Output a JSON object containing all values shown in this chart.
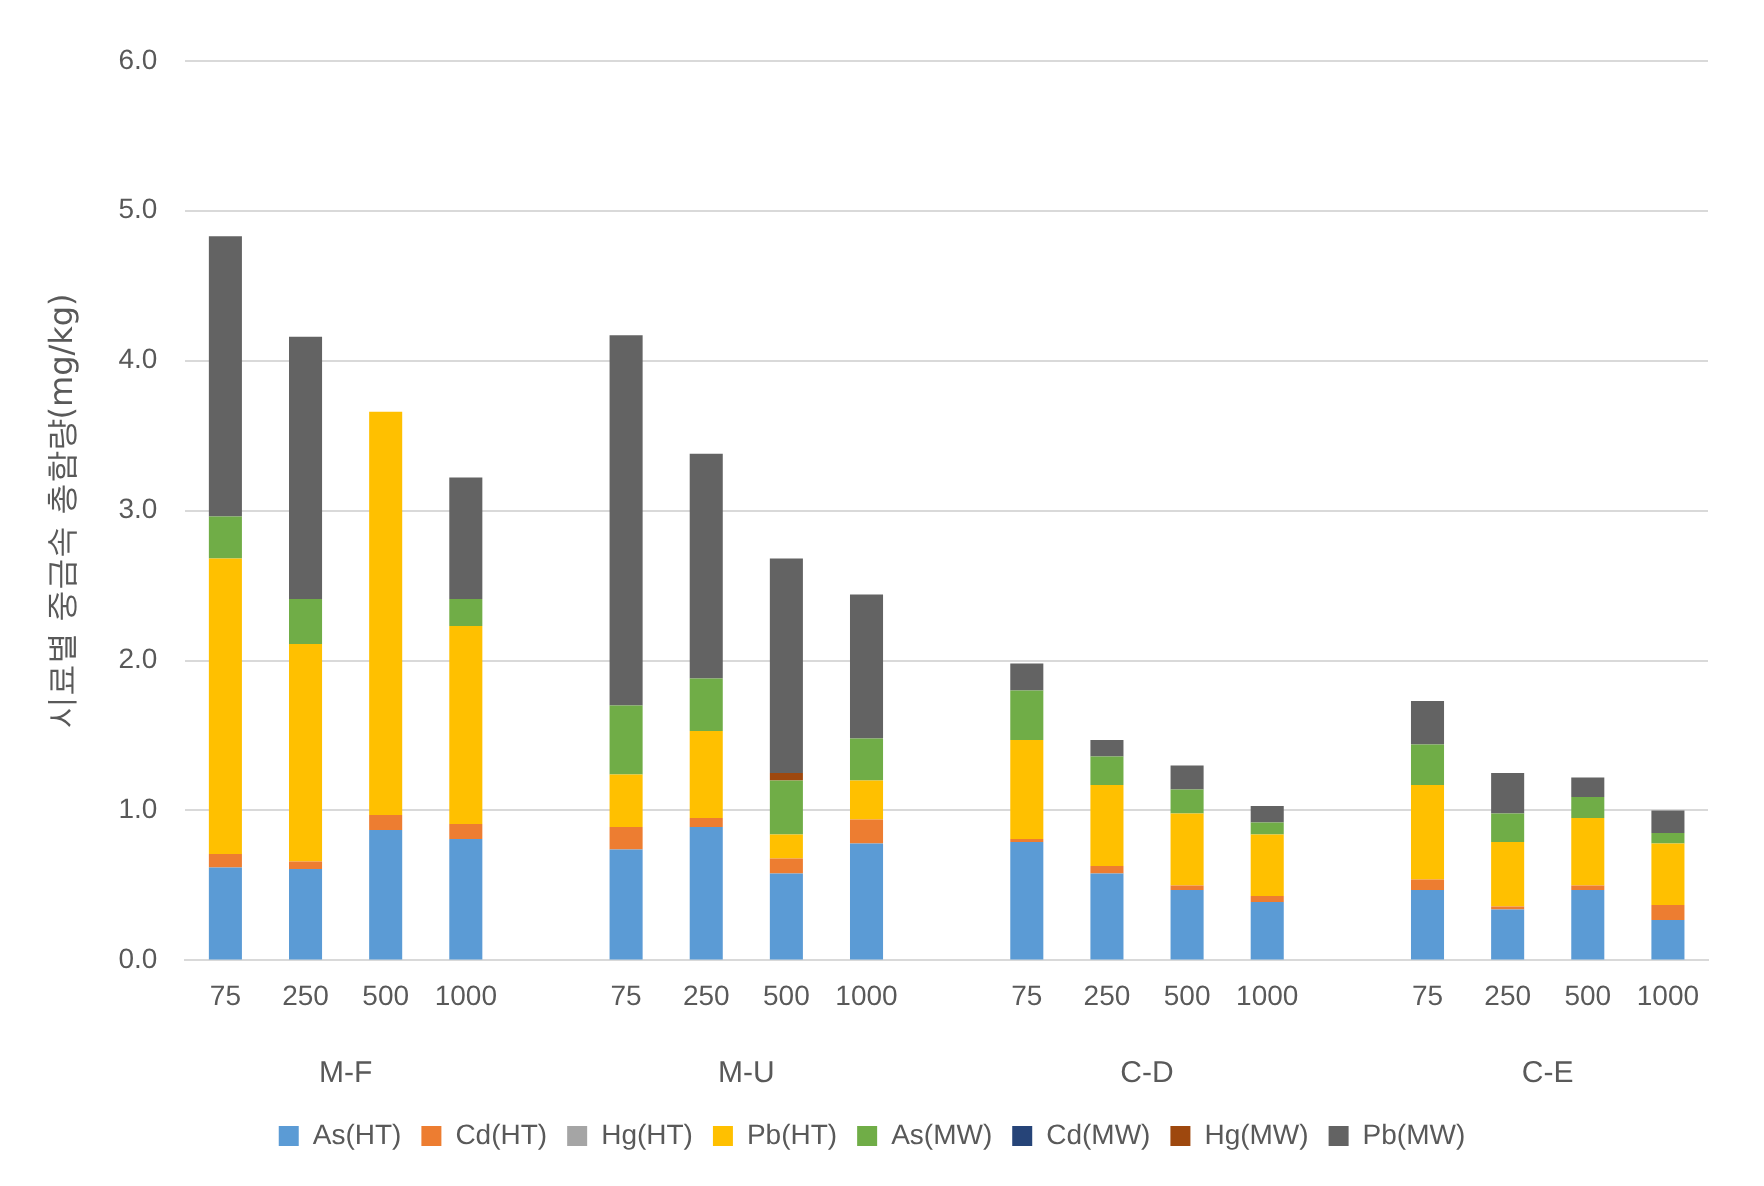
{
  "chart_data": {
    "type": "bar",
    "stacked": true,
    "ylabel": "시료별 중금속 총함량(mg/kg)",
    "categories": [
      "75",
      "250",
      "500",
      "1000",
      null,
      "75",
      "250",
      "500",
      "1000",
      null,
      "75",
      "250",
      "500",
      "1000",
      null,
      "75",
      "250",
      "500",
      "1000"
    ],
    "annotations": [
      "M-F",
      "M-U",
      "C-D",
      "C-E"
    ],
    "series": [
      {
        "name": "As(HT)",
        "color": "#5b9bd5",
        "values": [
          0.62,
          0.61,
          0.87,
          0.81,
          null,
          0.74,
          0.89,
          0.58,
          0.78,
          null,
          0.79,
          0.58,
          0.47,
          0.39,
          null,
          0.47,
          0.34,
          0.47,
          0.27
        ]
      },
      {
        "name": "Cd(HT)",
        "color": "#ed7d31",
        "values": [
          0.09,
          0.05,
          0.1,
          0.1,
          null,
          0.15,
          0.06,
          0.1,
          0.16,
          null,
          0.02,
          0.05,
          0.03,
          0.04,
          null,
          0.07,
          0.02,
          0.03,
          0.1
        ]
      },
      {
        "name": "Hg(HT)",
        "color": "#a5a5a5",
        "values": [
          0,
          0,
          0,
          0,
          null,
          0,
          0,
          0,
          0,
          null,
          0,
          0,
          0,
          0,
          null,
          0,
          0,
          0,
          0
        ]
      },
      {
        "name": "Pb(HT)",
        "color": "#ffc000",
        "values": [
          1.97,
          1.45,
          2.69,
          1.32,
          null,
          0.35,
          0.58,
          0.16,
          0.26,
          null,
          0.66,
          0.54,
          0.48,
          0.41,
          null,
          0.63,
          0.43,
          0.45,
          0.41
        ]
      },
      {
        "name": "As(MW)",
        "color": "#70ad47",
        "values": [
          0.28,
          0.3,
          0,
          0.18,
          null,
          0.46,
          0.35,
          0.36,
          0.28,
          null,
          0.33,
          0.19,
          0.16,
          0.08,
          null,
          0.27,
          0.19,
          0.14,
          0.07
        ]
      },
      {
        "name": "Cd(MW)",
        "color": "#264478",
        "values": [
          0,
          0,
          0,
          0,
          null,
          0,
          0,
          0,
          0,
          null,
          0,
          0,
          0,
          0,
          null,
          0,
          0,
          0,
          0
        ]
      },
      {
        "name": "Hg(MW)",
        "color": "#9e480e",
        "values": [
          0,
          0,
          0,
          0,
          null,
          0,
          0,
          0.05,
          0,
          null,
          0,
          0,
          0,
          0,
          null,
          0,
          0,
          0,
          0
        ]
      },
      {
        "name": "Pb(MW)",
        "color": "#636363",
        "values": [
          1.87,
          1.75,
          0,
          0.81,
          null,
          2.47,
          1.5,
          1.43,
          0.96,
          null,
          0.18,
          0.11,
          0.16,
          0.11,
          null,
          0.29,
          0.27,
          0.13,
          0.15
        ]
      }
    ],
    "ylim": [
      0,
      6
    ],
    "yticks": [
      {
        "value": 0,
        "label": "0.0"
      },
      {
        "value": 1,
        "label": "1.0"
      },
      {
        "value": 2,
        "label": "2.0"
      },
      {
        "value": 3,
        "label": "3.0"
      },
      {
        "value": 4,
        "label": "4.0"
      },
      {
        "value": 5,
        "label": "5.0"
      },
      {
        "value": 6,
        "label": "6.0"
      }
    ],
    "grid": "y",
    "legend": "bottom"
  }
}
